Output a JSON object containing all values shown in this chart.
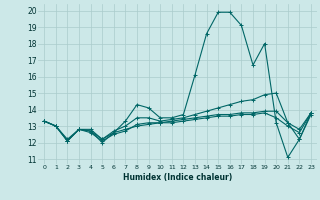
{
  "xlabel": "Humidex (Indice chaleur)",
  "ylabel": "",
  "bg_color": "#cce8e8",
  "grid_color": "#aacccc",
  "line_color": "#006666",
  "xlim": [
    -0.5,
    23.5
  ],
  "ylim": [
    10.7,
    20.4
  ],
  "yticks": [
    11,
    12,
    13,
    14,
    15,
    16,
    17,
    18,
    19,
    20
  ],
  "xticks": [
    0,
    1,
    2,
    3,
    4,
    5,
    6,
    7,
    8,
    9,
    10,
    11,
    12,
    13,
    14,
    15,
    16,
    17,
    18,
    19,
    20,
    21,
    22,
    23
  ],
  "series": [
    [
      13.3,
      13.0,
      12.1,
      12.8,
      12.7,
      12.0,
      12.6,
      13.3,
      14.3,
      14.1,
      13.5,
      13.5,
      13.7,
      16.1,
      18.6,
      19.9,
      19.9,
      19.1,
      16.7,
      18.0,
      13.2,
      11.1,
      12.2,
      13.8
    ],
    [
      13.3,
      13.0,
      12.2,
      12.8,
      12.8,
      12.2,
      12.7,
      13.0,
      13.5,
      13.5,
      13.3,
      13.4,
      13.5,
      13.7,
      13.9,
      14.1,
      14.3,
      14.5,
      14.6,
      14.9,
      15.0,
      13.2,
      12.2,
      13.7
    ],
    [
      13.3,
      13.0,
      12.1,
      12.8,
      12.7,
      12.2,
      12.6,
      12.8,
      13.0,
      13.1,
      13.2,
      13.3,
      13.4,
      13.5,
      13.6,
      13.7,
      13.7,
      13.8,
      13.8,
      13.9,
      13.9,
      13.2,
      12.8,
      13.8
    ],
    [
      13.3,
      13.0,
      12.1,
      12.8,
      12.6,
      12.1,
      12.5,
      12.7,
      13.1,
      13.2,
      13.2,
      13.2,
      13.3,
      13.4,
      13.5,
      13.6,
      13.6,
      13.7,
      13.7,
      13.8,
      13.5,
      13.0,
      12.6,
      13.8
    ]
  ]
}
